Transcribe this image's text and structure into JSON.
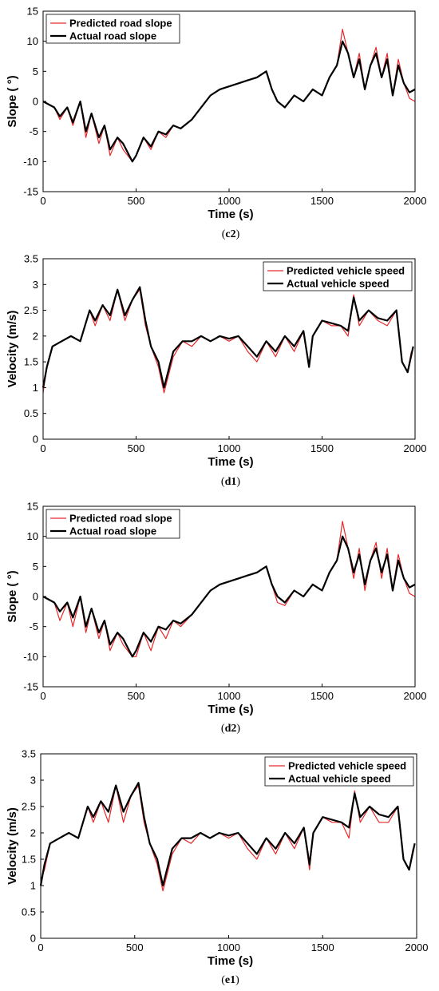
{
  "colors": {
    "predicted": "#e8282a",
    "actual": "#000000",
    "axis": "#000000"
  },
  "chart_data": [
    {
      "type": "line",
      "caption": {
        "open": "(",
        "label": "c2",
        "close": ")"
      },
      "xlabel": "Time (s)",
      "ylabel": "Slope ( °)",
      "xlim": [
        0,
        2000
      ],
      "ylim": [
        -15,
        15
      ],
      "xticks": [
        0,
        500,
        1000,
        1500,
        2000
      ],
      "yticks": [
        -15,
        -10,
        -5,
        0,
        5,
        10,
        15
      ],
      "legend_position": "top-left",
      "series": [
        {
          "name": "Predicted road slope",
          "x": [
            0,
            60,
            90,
            130,
            160,
            200,
            230,
            260,
            300,
            330,
            360,
            400,
            430,
            480,
            500,
            540,
            580,
            620,
            660,
            700,
            740,
            800,
            850,
            900,
            950,
            1000,
            1050,
            1100,
            1150,
            1200,
            1230,
            1260,
            1300,
            1350,
            1400,
            1450,
            1500,
            1540,
            1580,
            1610,
            1640,
            1670,
            1700,
            1730,
            1760,
            1790,
            1820,
            1850,
            1880,
            1910,
            1940,
            1970,
            2000
          ],
          "y": [
            0,
            -1,
            -3,
            -1,
            -4,
            0,
            -6,
            -2,
            -7,
            -4,
            -9,
            -6,
            -8,
            -10,
            -9,
            -6,
            -8,
            -5,
            -6,
            -4,
            -4.5,
            -3,
            -1,
            1,
            2,
            2.5,
            3,
            3.5,
            4,
            5,
            2,
            0,
            -1,
            1,
            0,
            2,
            1,
            4,
            6,
            12,
            8,
            4,
            8,
            2,
            6,
            9,
            4,
            8,
            1,
            7,
            3,
            0.5,
            0
          ]
        },
        {
          "name": "Actual road slope",
          "x": [
            0,
            60,
            90,
            130,
            160,
            200,
            230,
            260,
            300,
            330,
            360,
            400,
            430,
            480,
            500,
            540,
            580,
            620,
            660,
            700,
            740,
            800,
            850,
            900,
            950,
            1000,
            1050,
            1100,
            1150,
            1200,
            1230,
            1260,
            1300,
            1350,
            1400,
            1450,
            1500,
            1540,
            1580,
            1610,
            1640,
            1670,
            1700,
            1730,
            1760,
            1790,
            1820,
            1850,
            1880,
            1910,
            1940,
            1970,
            2000
          ],
          "y": [
            0,
            -1,
            -2.5,
            -1,
            -3.5,
            0,
            -5,
            -2,
            -6,
            -4,
            -8,
            -6,
            -7,
            -10,
            -9,
            -6,
            -7.5,
            -5,
            -5.5,
            -4,
            -4.5,
            -3,
            -1,
            1,
            2,
            2.5,
            3,
            3.5,
            4,
            5,
            2,
            0,
            -1,
            1,
            0,
            2,
            1,
            4,
            6,
            10,
            8,
            4,
            7,
            2,
            6,
            8,
            4,
            7,
            1,
            6,
            3,
            1.5,
            2
          ]
        }
      ]
    },
    {
      "type": "line",
      "caption": {
        "open": "(",
        "label": "d1",
        "close": ")"
      },
      "xlabel": "Time (s)",
      "ylabel": "Velocity (m/s)",
      "xlim": [
        0,
        2000
      ],
      "ylim": [
        0,
        3.5
      ],
      "xticks": [
        0,
        500,
        1000,
        1500,
        2000
      ],
      "yticks": [
        0,
        0.5,
        1,
        1.5,
        2,
        2.5,
        3,
        3.5
      ],
      "legend_position": "top-right",
      "series": [
        {
          "name": "Predicted vehicle speed",
          "x": [
            0,
            20,
            50,
            100,
            150,
            200,
            250,
            280,
            320,
            360,
            400,
            440,
            480,
            520,
            550,
            580,
            620,
            650,
            700,
            750,
            800,
            850,
            900,
            950,
            1000,
            1050,
            1100,
            1150,
            1200,
            1250,
            1300,
            1350,
            1400,
            1430,
            1450,
            1500,
            1550,
            1600,
            1640,
            1670,
            1700,
            1750,
            1800,
            1850,
            1900,
            1930,
            1960,
            1980
          ],
          "y": [
            0.9,
            1.4,
            1.8,
            1.9,
            2.0,
            1.9,
            2.5,
            2.2,
            2.6,
            2.3,
            2.9,
            2.3,
            2.7,
            2.9,
            2.2,
            1.8,
            1.4,
            0.9,
            1.6,
            1.9,
            1.8,
            2.0,
            1.9,
            2.0,
            1.9,
            2.0,
            1.7,
            1.5,
            1.9,
            1.6,
            2.0,
            1.7,
            2.1,
            1.4,
            2.0,
            2.3,
            2.2,
            2.2,
            2.0,
            2.8,
            2.2,
            2.5,
            2.3,
            2.2,
            2.5,
            1.5,
            1.3,
            1.7
          ]
        },
        {
          "name": "Actual vehicle speed",
          "x": [
            0,
            20,
            50,
            100,
            150,
            200,
            250,
            280,
            320,
            360,
            400,
            440,
            480,
            520,
            550,
            580,
            620,
            650,
            700,
            750,
            800,
            850,
            900,
            950,
            1000,
            1050,
            1100,
            1150,
            1200,
            1250,
            1300,
            1350,
            1400,
            1430,
            1450,
            1500,
            1550,
            1600,
            1640,
            1670,
            1700,
            1750,
            1800,
            1850,
            1900,
            1930,
            1960,
            1990
          ],
          "y": [
            1.0,
            1.4,
            1.8,
            1.9,
            2.0,
            1.9,
            2.5,
            2.3,
            2.6,
            2.4,
            2.9,
            2.4,
            2.7,
            2.95,
            2.3,
            1.8,
            1.5,
            1.0,
            1.7,
            1.9,
            1.9,
            2.0,
            1.9,
            2.0,
            1.95,
            2.0,
            1.8,
            1.6,
            1.9,
            1.7,
            2.0,
            1.8,
            2.1,
            1.4,
            2.0,
            2.3,
            2.25,
            2.2,
            2.1,
            2.75,
            2.3,
            2.5,
            2.35,
            2.3,
            2.5,
            1.5,
            1.3,
            1.8
          ]
        }
      ]
    },
    {
      "type": "line",
      "caption": {
        "open": "(",
        "label": "d2",
        "close": ")"
      },
      "xlabel": "Time (s)",
      "ylabel": "Slope ( °)",
      "xlim": [
        0,
        2000
      ],
      "ylim": [
        -15,
        15
      ],
      "xticks": [
        0,
        500,
        1000,
        1500,
        2000
      ],
      "yticks": [
        -15,
        -10,
        -5,
        0,
        5,
        10,
        15
      ],
      "legend_position": "top-left",
      "series": [
        {
          "name": "Predicted road slope",
          "x": [
            0,
            60,
            90,
            130,
            160,
            200,
            230,
            260,
            300,
            330,
            360,
            400,
            430,
            480,
            500,
            540,
            580,
            620,
            660,
            700,
            740,
            800,
            850,
            900,
            950,
            1000,
            1050,
            1100,
            1150,
            1200,
            1230,
            1260,
            1300,
            1350,
            1400,
            1450,
            1500,
            1540,
            1580,
            1610,
            1640,
            1670,
            1700,
            1730,
            1760,
            1790,
            1820,
            1850,
            1880,
            1910,
            1940,
            1970,
            2000
          ],
          "y": [
            0,
            -1,
            -4,
            -1,
            -5,
            0,
            -6,
            -2,
            -7,
            -4,
            -9,
            -6,
            -8,
            -10,
            -10,
            -6,
            -9,
            -5,
            -7,
            -4,
            -5,
            -3,
            -1,
            1,
            2,
            2.5,
            3,
            3.5,
            4,
            5,
            2,
            -1,
            -1.5,
            1,
            0,
            2,
            1,
            4,
            6,
            12.5,
            8,
            3,
            8,
            1,
            6,
            9,
            3,
            8,
            1,
            7,
            3,
            0.5,
            0
          ]
        },
        {
          "name": "Actual road slope",
          "x": [
            0,
            60,
            90,
            130,
            160,
            200,
            230,
            260,
            300,
            330,
            360,
            400,
            430,
            480,
            500,
            540,
            580,
            620,
            660,
            700,
            740,
            800,
            850,
            900,
            950,
            1000,
            1050,
            1100,
            1150,
            1200,
            1230,
            1260,
            1300,
            1350,
            1400,
            1450,
            1500,
            1540,
            1580,
            1610,
            1640,
            1670,
            1700,
            1730,
            1760,
            1790,
            1820,
            1850,
            1880,
            1910,
            1940,
            1970,
            2000
          ],
          "y": [
            0,
            -1,
            -2.5,
            -1,
            -3.5,
            0,
            -5,
            -2,
            -6,
            -4,
            -8,
            -6,
            -7,
            -10,
            -9,
            -6,
            -7.5,
            -5,
            -5.5,
            -4,
            -4.5,
            -3,
            -1,
            1,
            2,
            2.5,
            3,
            3.5,
            4,
            5,
            2,
            0,
            -1,
            1,
            0,
            2,
            1,
            4,
            6,
            10,
            8,
            4,
            7,
            2,
            6,
            8,
            4,
            7,
            1,
            6,
            3,
            1.5,
            2
          ]
        }
      ]
    },
    {
      "type": "line",
      "caption": {
        "open": "(",
        "label": "e1",
        "close": ")"
      },
      "xlabel": "Time (s)",
      "ylabel": "Velocity (m/s)",
      "xlim": [
        0,
        2000
      ],
      "ylim": [
        0,
        3.5
      ],
      "xticks": [
        0,
        500,
        1000,
        1500,
        2000
      ],
      "yticks": [
        0,
        0.5,
        1,
        1.5,
        2,
        2.5,
        3,
        3.5
      ],
      "legend_position": "top-right",
      "series": [
        {
          "name": "Predicted vehicle speed",
          "x": [
            0,
            20,
            50,
            100,
            150,
            200,
            250,
            280,
            320,
            360,
            400,
            440,
            480,
            520,
            550,
            580,
            620,
            650,
            700,
            750,
            800,
            850,
            900,
            950,
            1000,
            1050,
            1100,
            1150,
            1200,
            1250,
            1300,
            1350,
            1400,
            1430,
            1450,
            1500,
            1550,
            1600,
            1640,
            1670,
            1700,
            1750,
            1800,
            1850,
            1900,
            1930,
            1960,
            1980
          ],
          "y": [
            1.1,
            1.3,
            1.8,
            1.9,
            2.0,
            1.9,
            2.5,
            2.2,
            2.6,
            2.2,
            2.9,
            2.2,
            2.7,
            2.9,
            2.2,
            1.8,
            1.4,
            0.9,
            1.6,
            1.9,
            1.8,
            2.0,
            1.9,
            2.0,
            1.9,
            2.0,
            1.7,
            1.5,
            1.9,
            1.6,
            2.0,
            1.7,
            2.1,
            1.3,
            2.0,
            2.3,
            2.2,
            2.2,
            1.9,
            2.8,
            2.2,
            2.5,
            2.2,
            2.2,
            2.5,
            1.5,
            1.3,
            1.7
          ]
        },
        {
          "name": "Actual vehicle speed",
          "x": [
            0,
            20,
            50,
            100,
            150,
            200,
            250,
            280,
            320,
            360,
            400,
            440,
            480,
            520,
            550,
            580,
            620,
            650,
            700,
            750,
            800,
            850,
            900,
            950,
            1000,
            1050,
            1100,
            1150,
            1200,
            1250,
            1300,
            1350,
            1400,
            1430,
            1450,
            1500,
            1550,
            1600,
            1640,
            1670,
            1700,
            1750,
            1800,
            1850,
            1900,
            1930,
            1960,
            1990
          ],
          "y": [
            1.0,
            1.4,
            1.8,
            1.9,
            2.0,
            1.9,
            2.5,
            2.3,
            2.6,
            2.4,
            2.9,
            2.4,
            2.7,
            2.95,
            2.3,
            1.8,
            1.5,
            1.0,
            1.7,
            1.9,
            1.9,
            2.0,
            1.9,
            2.0,
            1.95,
            2.0,
            1.8,
            1.6,
            1.9,
            1.7,
            2.0,
            1.8,
            2.1,
            1.4,
            2.0,
            2.3,
            2.25,
            2.2,
            2.1,
            2.75,
            2.3,
            2.5,
            2.35,
            2.3,
            2.5,
            1.5,
            1.3,
            1.8
          ]
        }
      ]
    }
  ]
}
